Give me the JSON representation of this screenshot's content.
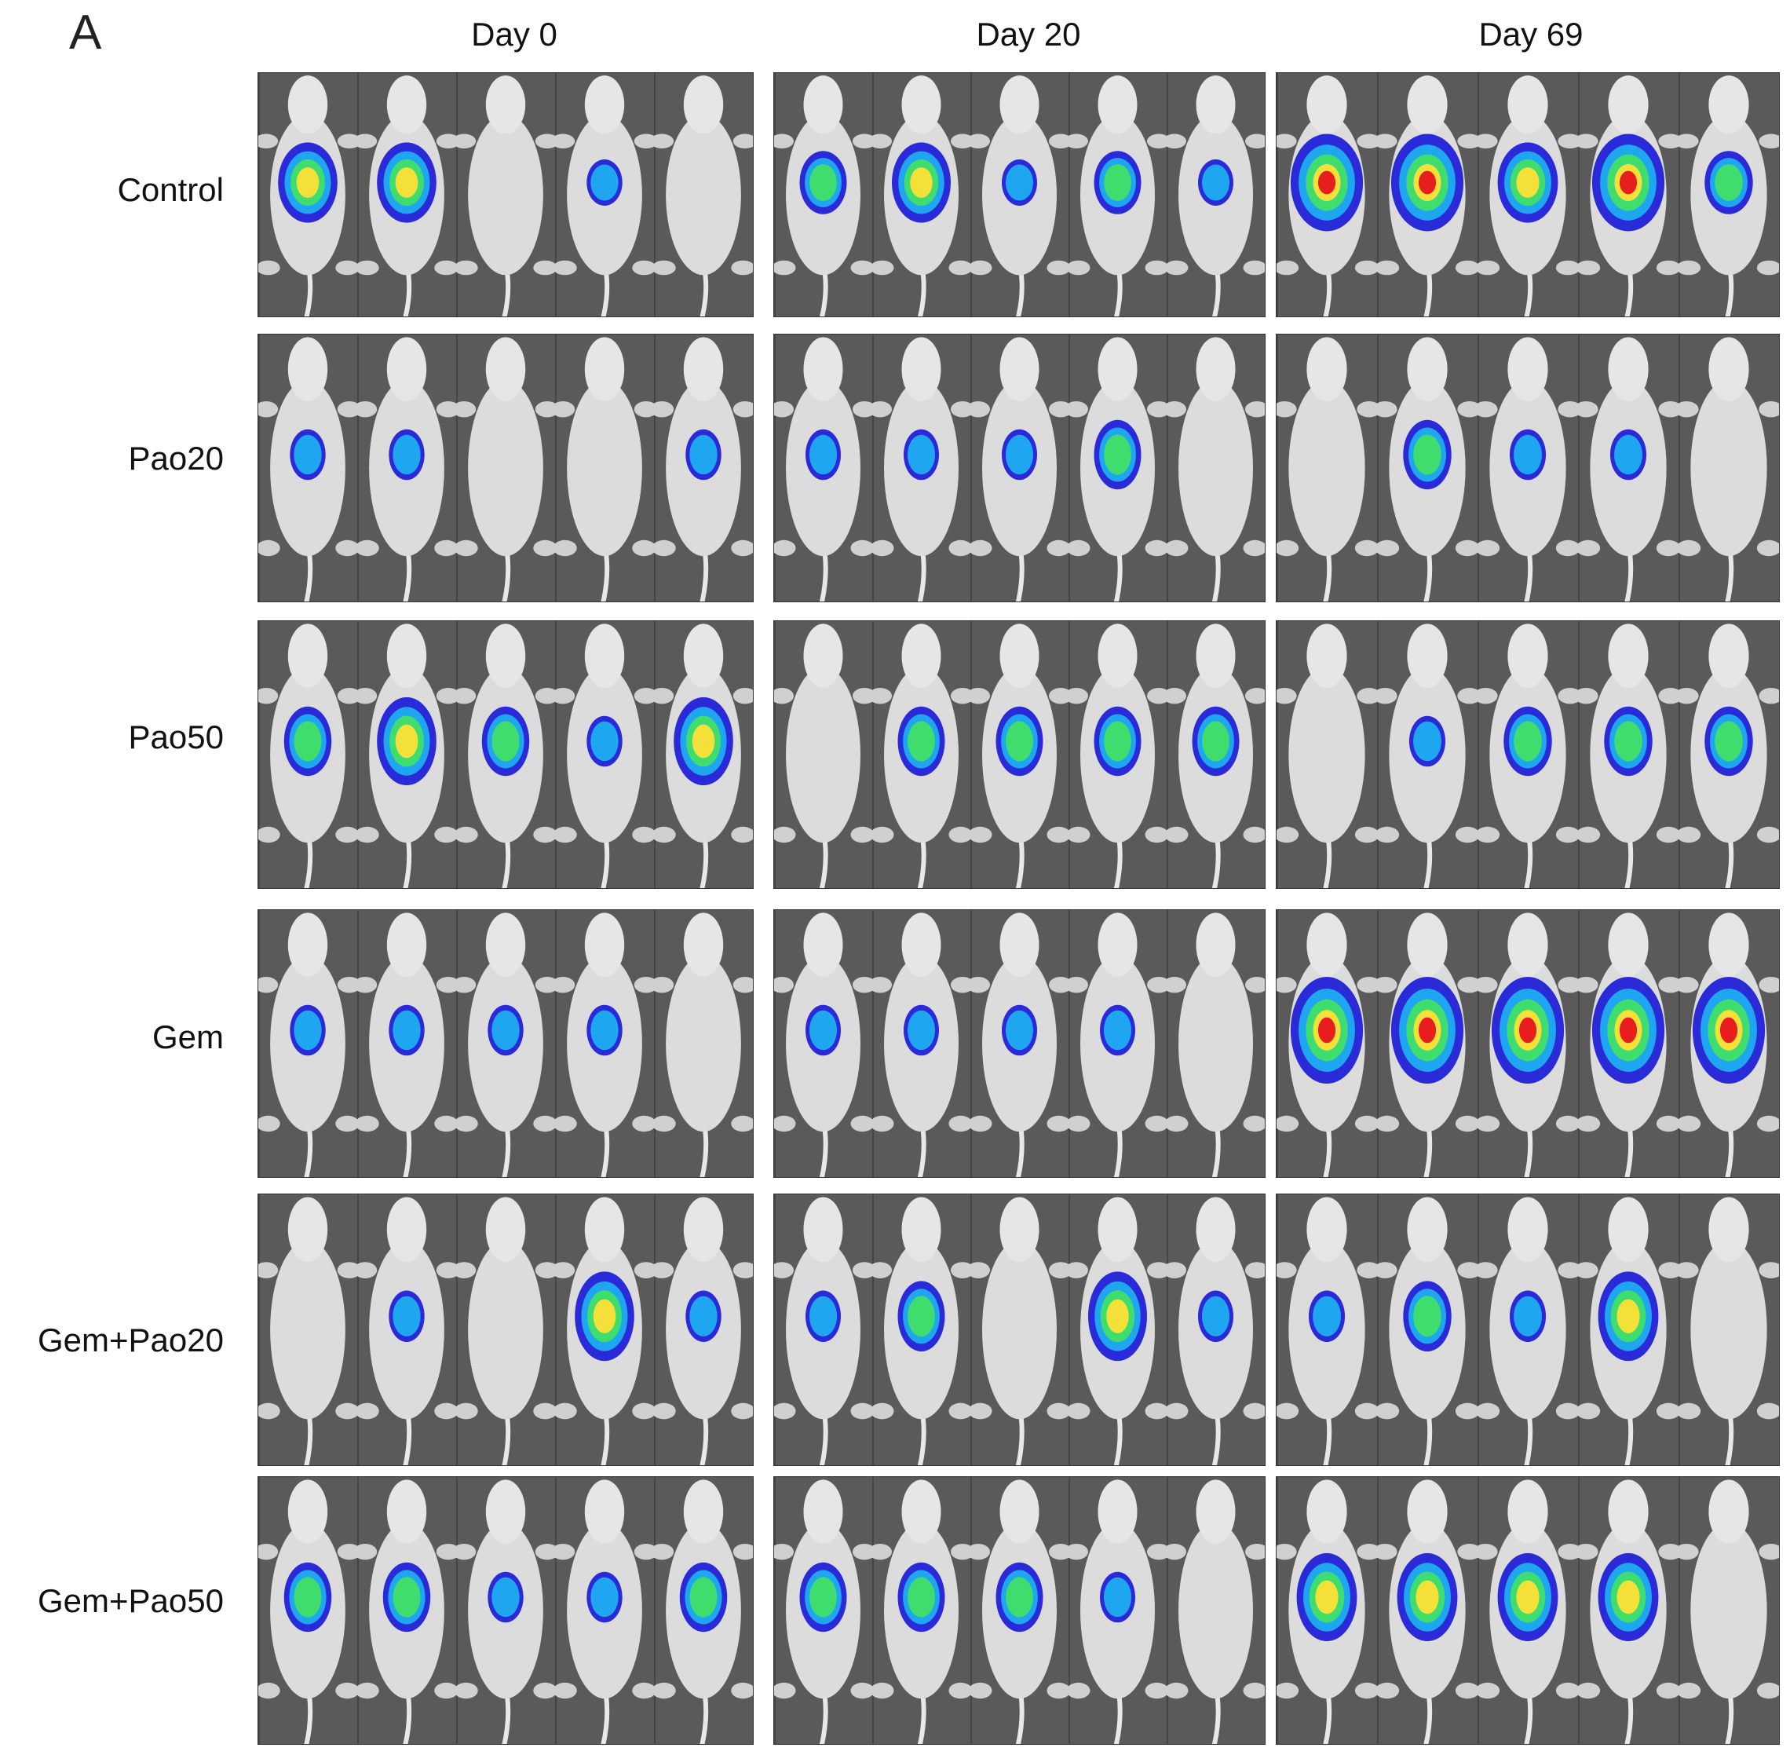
{
  "figure": {
    "panel_letter": "A",
    "columns": [
      "Day 0",
      "Day 20",
      "Day 69"
    ],
    "rows": [
      "Control",
      "Pao20",
      "Pao50",
      "Gem",
      "Gem+Pao20",
      "Gem+Pao50"
    ],
    "mice_per_panel": 5,
    "signal_colors": {
      "low": "#2a2ad8",
      "mid_low": "#1fa6f0",
      "mid": "#3fdc6e",
      "mid_high": "#f3e13a",
      "high": "#e81e1e"
    },
    "signal_levels": [
      [
        [
          3,
          3,
          0,
          1,
          0
        ],
        [
          2,
          3,
          1,
          2,
          1
        ],
        [
          4,
          4,
          3,
          4,
          2
        ]
      ],
      [
        [
          1,
          1,
          0,
          0,
          1
        ],
        [
          1,
          1,
          1,
          2,
          0
        ],
        [
          0,
          2,
          1,
          1,
          0
        ]
      ],
      [
        [
          2,
          3,
          2,
          1,
          3
        ],
        [
          0,
          2,
          2,
          2,
          2
        ],
        [
          0,
          1,
          2,
          2,
          2
        ]
      ],
      [
        [
          1,
          1,
          1,
          1,
          0
        ],
        [
          1,
          1,
          1,
          1,
          0
        ],
        [
          4,
          4,
          4,
          4,
          4
        ]
      ],
      [
        [
          0,
          1,
          0,
          3,
          1
        ],
        [
          1,
          2,
          0,
          3,
          1
        ],
        [
          1,
          2,
          1,
          3,
          0
        ]
      ],
      [
        [
          2,
          2,
          1,
          1,
          2
        ],
        [
          2,
          2,
          2,
          1,
          0
        ],
        [
          3,
          3,
          3,
          3,
          0
        ]
      ]
    ]
  }
}
